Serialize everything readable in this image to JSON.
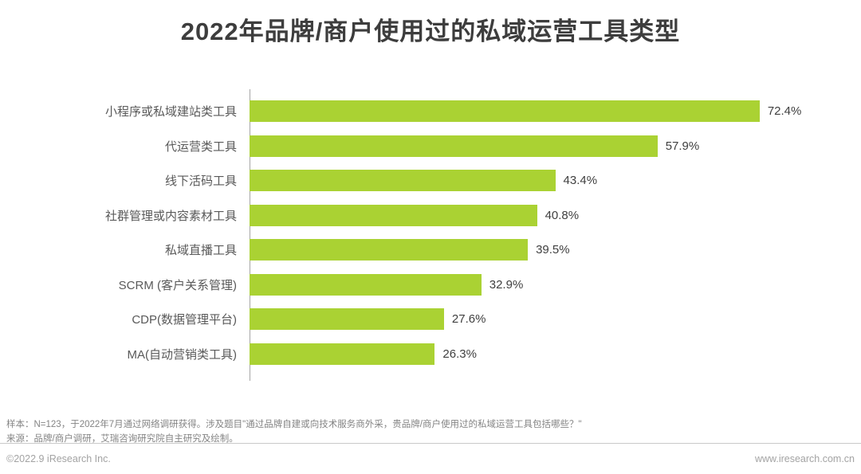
{
  "title": "2022年品牌/商户使用过的私域运营工具类型",
  "chart_data": {
    "type": "bar",
    "orientation": "horizontal",
    "title": "2022年品牌/商户使用过的私域运营工具类型",
    "categories": [
      "小程序或私域建站类工具",
      "代运营类工具",
      "线下活码工具",
      "社群管理或内容素材工具",
      "私域直播工具",
      "SCRM (客户关系管理)",
      "CDP(数据管理平台)",
      "MA(自动营销类工具)"
    ],
    "values": [
      72.4,
      57.9,
      43.4,
      40.8,
      39.5,
      32.9,
      27.6,
      26.3
    ],
    "value_labels": [
      "72.4%",
      "57.9%",
      "43.4%",
      "40.8%",
      "39.5%",
      "32.9%",
      "27.6%",
      "26.3%"
    ],
    "xlim": [
      0,
      80
    ],
    "grid": false,
    "legend": "none",
    "bar_color": "#aad233",
    "axis_line_color": "#a6a6a6"
  },
  "footer": {
    "sample_note": "样本：N=123，于2022年7月通过网络调研获得。涉及题目\"通过品牌自建或向技术服务商外采，贵品牌/商户使用过的私域运营工具包括哪些？\"",
    "source_note": "来源：品牌/商户调研，艾瑞咨询研究院自主研究及绘制。",
    "copyright": "©2022.9 iResearch Inc.",
    "website": "www.iresearch.com.cn"
  }
}
